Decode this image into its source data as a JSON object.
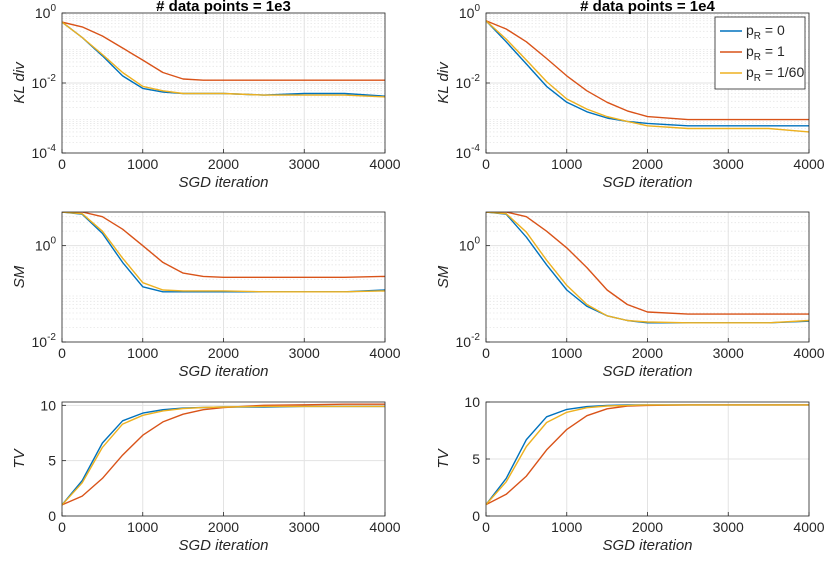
{
  "colors": {
    "blue": "#0072BD",
    "red": "#D95319",
    "yellow": "#EDB120"
  },
  "legend": {
    "placement": "top-right",
    "entries": [
      {
        "base": "p",
        "sub": "R",
        "rest": " = 0",
        "color": "#0072BD"
      },
      {
        "base": "p",
        "sub": "R",
        "rest": " = 1",
        "color": "#D95319"
      },
      {
        "base": "p",
        "sub": "R",
        "rest": " = 1/60",
        "color": "#EDB120"
      }
    ]
  },
  "chart_data": [
    {
      "type": "line",
      "title": "# data points = 1e3",
      "xlabel": "SGD iteration",
      "ylabel": "KL div",
      "yscale": "log",
      "xlim": [
        0,
        4000
      ],
      "ylim": [
        0.0001,
        1
      ],
      "grid": true,
      "xticks": [
        "0",
        "1000",
        "2000",
        "3000",
        "4000"
      ],
      "yticks_exp": [
        "0",
        "-2",
        "-4"
      ],
      "x": [
        0,
        250,
        500,
        750,
        1000,
        1250,
        1500,
        1750,
        2000,
        2500,
        3000,
        3500,
        4000
      ],
      "series": [
        {
          "label": "p_R = 0",
          "color": "#0072BD",
          "values": [
            0.55,
            0.2,
            0.06,
            0.016,
            0.007,
            0.0055,
            0.005,
            0.005,
            0.005,
            0.0045,
            0.005,
            0.005,
            0.0042
          ]
        },
        {
          "label": "p_R = 1",
          "color": "#D95319",
          "values": [
            0.55,
            0.4,
            0.22,
            0.1,
            0.045,
            0.02,
            0.013,
            0.012,
            0.012,
            0.012,
            0.012,
            0.012,
            0.012
          ]
        },
        {
          "label": "p_R = 1/60",
          "color": "#EDB120",
          "values": [
            0.55,
            0.2,
            0.065,
            0.02,
            0.008,
            0.006,
            0.005,
            0.005,
            0.005,
            0.0045,
            0.0045,
            0.0045,
            0.004
          ]
        }
      ]
    },
    {
      "type": "line",
      "title": "# data points = 1e4",
      "xlabel": "SGD iteration",
      "ylabel": "KL div",
      "yscale": "log",
      "xlim": [
        0,
        4000
      ],
      "ylim": [
        0.0001,
        1
      ],
      "grid": true,
      "xticks": [
        "0",
        "1000",
        "2000",
        "3000",
        "4000"
      ],
      "yticks_exp": [
        "0",
        "-2",
        "-4"
      ],
      "x": [
        0,
        250,
        500,
        750,
        1000,
        1250,
        1500,
        1750,
        2000,
        2500,
        3000,
        3500,
        4000
      ],
      "series": [
        {
          "label": "p_R = 0",
          "color": "#0072BD",
          "values": [
            0.6,
            0.15,
            0.035,
            0.008,
            0.0028,
            0.0015,
            0.001,
            0.0008,
            0.0007,
            0.0006,
            0.0006,
            0.0006,
            0.0006
          ]
        },
        {
          "label": "p_R = 1",
          "color": "#D95319",
          "values": [
            0.6,
            0.35,
            0.15,
            0.05,
            0.016,
            0.006,
            0.0028,
            0.0016,
            0.0011,
            0.0009,
            0.0009,
            0.0009,
            0.0009
          ]
        },
        {
          "label": "p_R = 1/60",
          "color": "#EDB120",
          "values": [
            0.6,
            0.18,
            0.045,
            0.011,
            0.0035,
            0.0018,
            0.0011,
            0.0008,
            0.0006,
            0.0005,
            0.0005,
            0.0005,
            0.0004
          ]
        }
      ]
    },
    {
      "type": "line",
      "title": "",
      "xlabel": "SGD iteration",
      "ylabel": "SM",
      "yscale": "log",
      "xlim": [
        0,
        4000
      ],
      "ylim": [
        0.01,
        5
      ],
      "grid": true,
      "xticks": [
        "0",
        "1000",
        "2000",
        "3000",
        "4000"
      ],
      "yticks_exp": [
        "0",
        "-2"
      ],
      "x": [
        0,
        250,
        500,
        750,
        1000,
        1250,
        1500,
        1750,
        2000,
        2500,
        3000,
        3500,
        4000
      ],
      "series": [
        {
          "label": "p_R = 0",
          "color": "#0072BD",
          "values": [
            5,
            4.5,
            1.8,
            0.45,
            0.14,
            0.11,
            0.11,
            0.11,
            0.11,
            0.11,
            0.11,
            0.11,
            0.12
          ]
        },
        {
          "label": "p_R = 1",
          "color": "#D95319",
          "values": [
            5,
            5,
            4,
            2.2,
            1.0,
            0.45,
            0.27,
            0.23,
            0.22,
            0.22,
            0.22,
            0.22,
            0.23
          ]
        },
        {
          "label": "p_R = 1/60",
          "color": "#EDB120",
          "values": [
            5,
            4.6,
            2.0,
            0.55,
            0.17,
            0.12,
            0.115,
            0.115,
            0.115,
            0.11,
            0.11,
            0.11,
            0.115
          ]
        }
      ]
    },
    {
      "type": "line",
      "title": "",
      "xlabel": "SGD iteration",
      "ylabel": "SM",
      "yscale": "log",
      "xlim": [
        0,
        4000
      ],
      "ylim": [
        0.01,
        5
      ],
      "grid": true,
      "xticks": [
        "0",
        "1000",
        "2000",
        "3000",
        "4000"
      ],
      "yticks_exp": [
        "0",
        "-2"
      ],
      "x": [
        0,
        250,
        500,
        750,
        1000,
        1250,
        1500,
        1750,
        2000,
        2500,
        3000,
        3500,
        4000
      ],
      "series": [
        {
          "label": "p_R = 0",
          "color": "#0072BD",
          "values": [
            5,
            4.5,
            1.5,
            0.4,
            0.12,
            0.055,
            0.035,
            0.028,
            0.025,
            0.025,
            0.025,
            0.025,
            0.027
          ]
        },
        {
          "label": "p_R = 1",
          "color": "#D95319",
          "values": [
            5,
            5,
            4,
            2.0,
            0.9,
            0.35,
            0.12,
            0.06,
            0.042,
            0.038,
            0.038,
            0.038,
            0.038
          ]
        },
        {
          "label": "p_R = 1/60",
          "color": "#EDB120",
          "values": [
            5,
            4.6,
            1.9,
            0.5,
            0.15,
            0.06,
            0.035,
            0.028,
            0.026,
            0.025,
            0.025,
            0.025,
            0.028
          ]
        }
      ]
    },
    {
      "type": "line",
      "title": "",
      "xlabel": "SGD iteration",
      "ylabel": "TV",
      "yscale": "linear",
      "xlim": [
        0,
        4000
      ],
      "ylim": [
        0,
        10.3
      ],
      "grid": true,
      "xticks": [
        "0",
        "1000",
        "2000",
        "3000",
        "4000"
      ],
      "yticks": [
        "0",
        "5",
        "10"
      ],
      "x": [
        0,
        250,
        500,
        750,
        1000,
        1250,
        1500,
        1750,
        2000,
        2500,
        3000,
        3500,
        4000
      ],
      "series": [
        {
          "label": "p_R = 0",
          "color": "#0072BD",
          "values": [
            1.0,
            3.2,
            6.6,
            8.6,
            9.3,
            9.6,
            9.75,
            9.8,
            9.85,
            9.85,
            9.9,
            9.9,
            9.9
          ]
        },
        {
          "label": "p_R = 1",
          "color": "#D95319",
          "values": [
            1.0,
            1.8,
            3.4,
            5.5,
            7.3,
            8.5,
            9.2,
            9.6,
            9.8,
            10.0,
            10.05,
            10.1,
            10.1
          ]
        },
        {
          "label": "p_R = 1/60",
          "color": "#EDB120",
          "values": [
            1.0,
            3.0,
            6.2,
            8.3,
            9.1,
            9.5,
            9.7,
            9.8,
            9.85,
            9.9,
            9.9,
            9.9,
            9.9
          ]
        }
      ]
    },
    {
      "type": "line",
      "title": "",
      "xlabel": "SGD iteration",
      "ylabel": "TV",
      "yscale": "linear",
      "xlim": [
        0,
        4000
      ],
      "ylim": [
        0,
        10.0
      ],
      "grid": true,
      "xticks": [
        "0",
        "1000",
        "2000",
        "3000",
        "4000"
      ],
      "yticks": [
        "0",
        "5",
        "10"
      ],
      "x": [
        0,
        250,
        500,
        750,
        1000,
        1250,
        1500,
        1750,
        2000,
        2500,
        3000,
        3500,
        4000
      ],
      "series": [
        {
          "label": "p_R = 0",
          "color": "#0072BD",
          "values": [
            1.0,
            3.3,
            6.7,
            8.7,
            9.35,
            9.6,
            9.7,
            9.75,
            9.75,
            9.75,
            9.75,
            9.75,
            9.75
          ]
        },
        {
          "label": "p_R = 1",
          "color": "#D95319",
          "values": [
            1.0,
            1.9,
            3.5,
            5.8,
            7.6,
            8.8,
            9.4,
            9.65,
            9.7,
            9.75,
            9.75,
            9.75,
            9.75
          ]
        },
        {
          "label": "p_R = 1/60",
          "color": "#EDB120",
          "values": [
            1.0,
            3.0,
            6.1,
            8.2,
            9.1,
            9.5,
            9.65,
            9.7,
            9.75,
            9.75,
            9.75,
            9.75,
            9.75
          ]
        }
      ]
    }
  ]
}
